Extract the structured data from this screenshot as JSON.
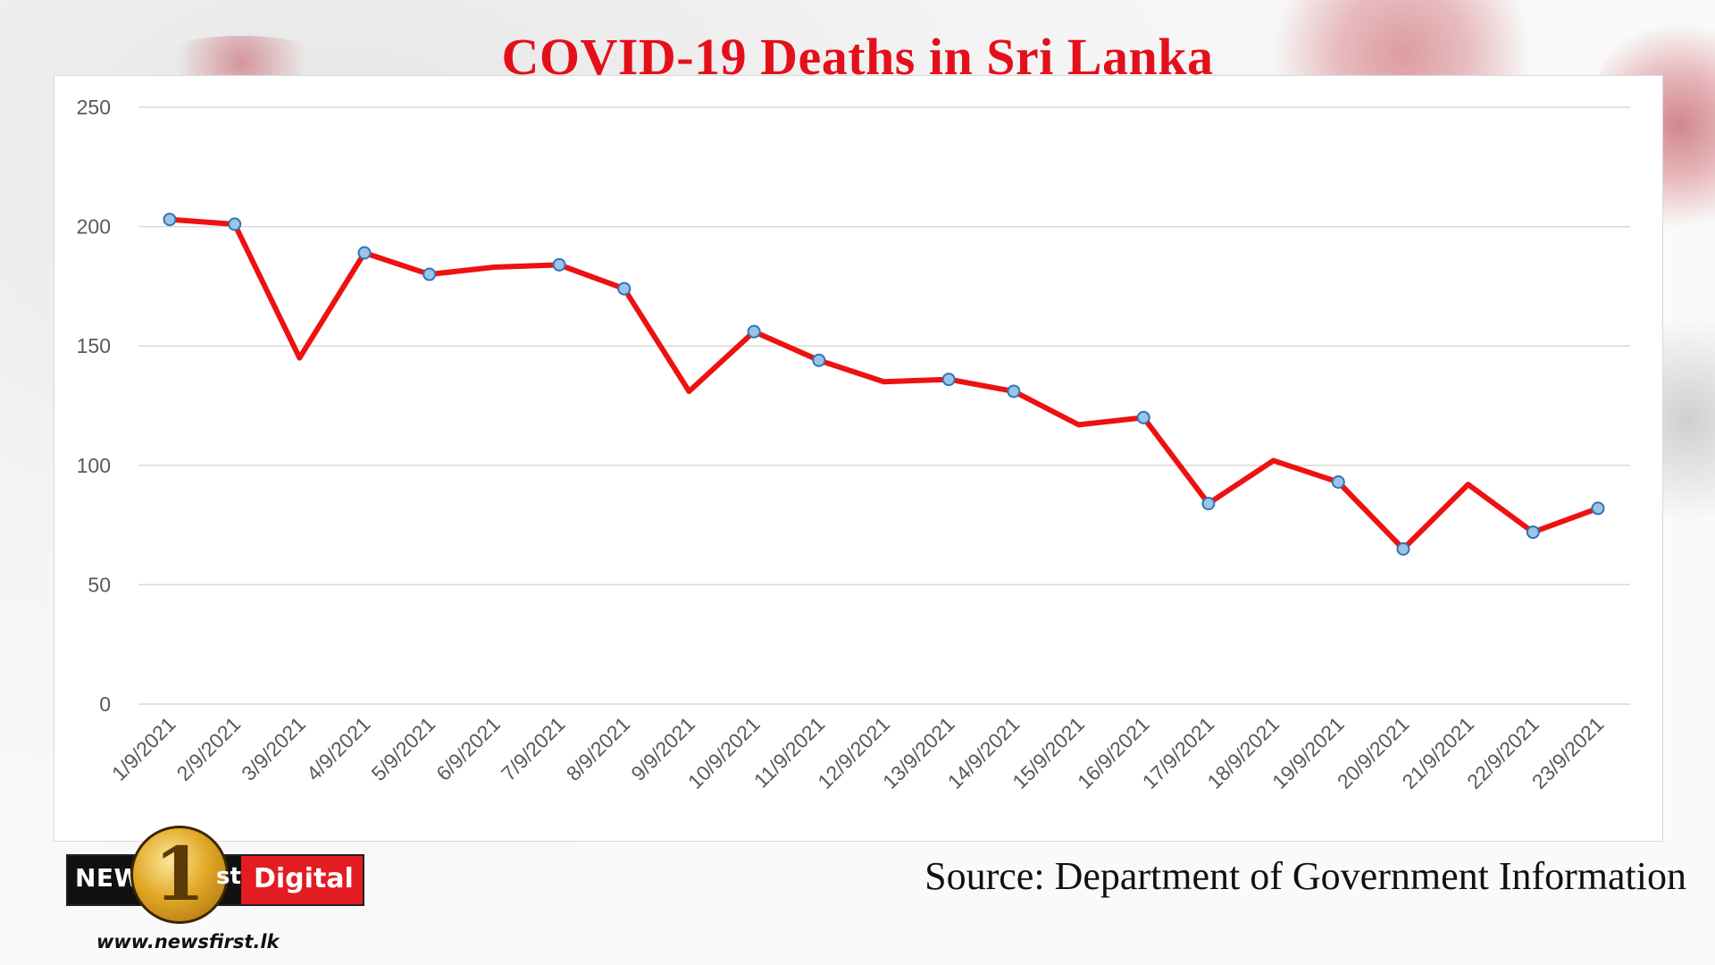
{
  "chart_data": {
    "type": "line",
    "title": "COVID-19 Deaths in Sri Lanka",
    "categories": [
      "1/9/2021",
      "2/9/2021",
      "3/9/2021",
      "4/9/2021",
      "5/9/2021",
      "6/9/2021",
      "7/9/2021",
      "8/9/2021",
      "9/9/2021",
      "10/9/2021",
      "11/9/2021",
      "12/9/2021",
      "13/9/2021",
      "14/9/2021",
      "15/9/2021",
      "16/9/2021",
      "17/9/2021",
      "18/9/2021",
      "19/9/2021",
      "20/9/2021",
      "21/9/2021",
      "22/9/2021",
      "23/9/2021"
    ],
    "series": [
      {
        "values": [
          203,
          201,
          145,
          189,
          180,
          183,
          184,
          174,
          131,
          156,
          144,
          135,
          136,
          131,
          117,
          120,
          84,
          102,
          93,
          65,
          92,
          72,
          82
        ],
        "marked": [
          true,
          true,
          false,
          true,
          true,
          false,
          true,
          true,
          false,
          true,
          true,
          false,
          true,
          true,
          false,
          true,
          true,
          false,
          true,
          true,
          false,
          true,
          true
        ]
      }
    ],
    "xlabel": "",
    "ylabel": "",
    "ylim": [
      0,
      250
    ],
    "yticks": [
      0,
      50,
      100,
      150,
      200,
      250
    ],
    "grid": true,
    "legend": "none",
    "colors": {
      "line": "#ee1111",
      "marker_fill": "#9dc3e6",
      "marker_stroke": "#2e75b6",
      "grid": "#d9d9d9",
      "tick_text": "#595959"
    }
  },
  "source": "Source: Department of Government Information",
  "logo": {
    "news": "NEWS",
    "one": "1",
    "st": "st",
    "digital": "Digital"
  },
  "website": "www.newsfirst.lk"
}
